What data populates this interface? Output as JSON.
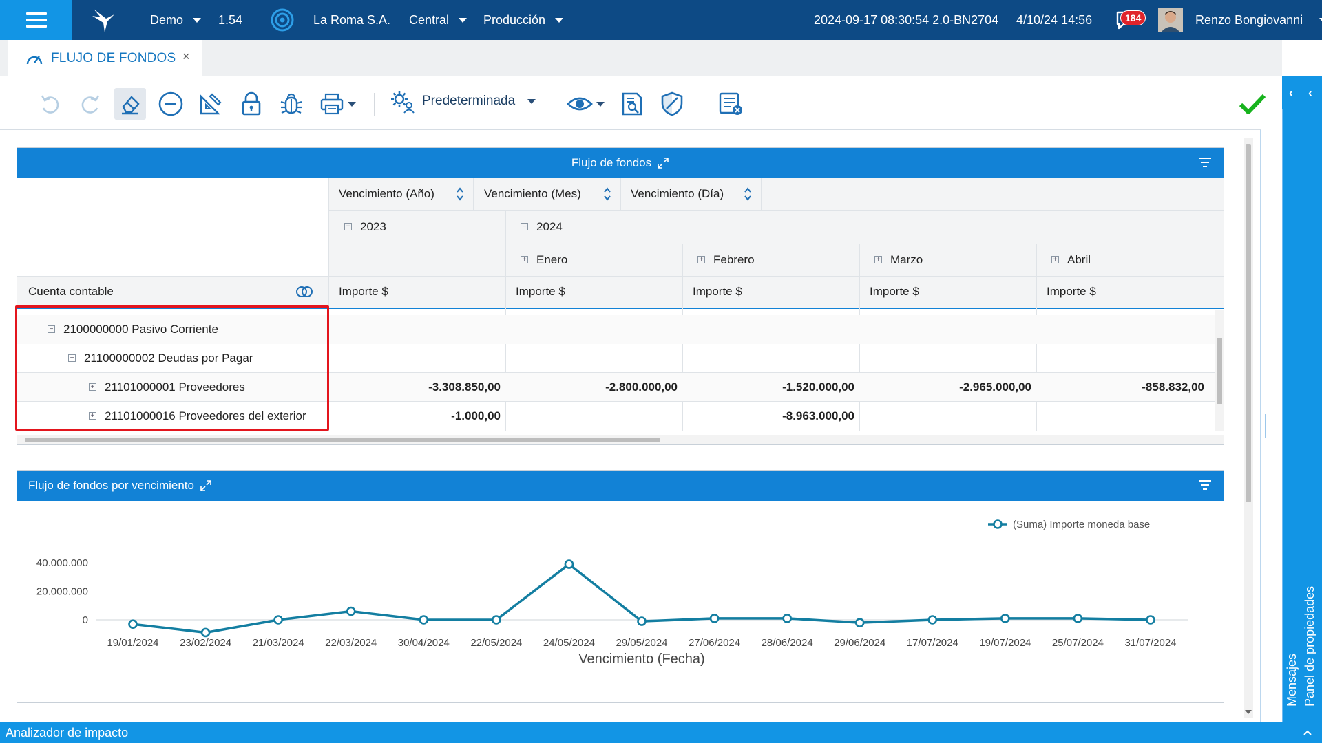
{
  "topbar": {
    "env": "Demo",
    "version": "1.54",
    "company": "La Roma S.A.",
    "branch": "Central",
    "mode": "Producción",
    "build": "2024-09-17 08:30:54 2.0-BN2704",
    "datetime": "4/10/24 14:56",
    "notifications": "184",
    "user": "Renzo Bongiovanni"
  },
  "tab": {
    "label": "FLUJO DE FONDOS",
    "close": "×"
  },
  "toolbar": {
    "preset_label": "Predeterminada"
  },
  "pivot": {
    "title": "Flujo de fondos",
    "field_headers": [
      "Vencimiento (Año)",
      "Vencimiento (Mes)",
      "Vencimiento (Día)"
    ],
    "row_field": "Cuenta contable",
    "years": [
      {
        "label": "2023",
        "expanded": false
      },
      {
        "label": "2024",
        "expanded": true
      }
    ],
    "months": [
      "Enero",
      "Febrero",
      "Marzo",
      "Abril"
    ],
    "measure": "Importe $",
    "rows": [
      {
        "label": "2100000000 Pasivo Corriente",
        "level": 0,
        "expanded": true,
        "values": [
          "",
          "",
          "",
          "",
          ""
        ]
      },
      {
        "label": "21100000002 Deudas por Pagar",
        "level": 1,
        "expanded": true,
        "values": [
          "",
          "",
          "",
          "",
          ""
        ]
      },
      {
        "label": "21101000001 Proveedores",
        "level": 2,
        "expanded": false,
        "values": [
          "-3.308.850,00",
          "-2.800.000,00",
          "-1.520.000,00",
          "-2.965.000,00",
          "-858.832,00"
        ]
      },
      {
        "label": "21101000016 Proveedores del exterior",
        "level": 2,
        "expanded": false,
        "values": [
          "-1.000,00",
          "",
          "-8.963.000,00",
          "",
          ""
        ]
      }
    ]
  },
  "chart_panel": {
    "title": "Flujo de fondos por vencimiento"
  },
  "chart_data": {
    "type": "line",
    "title": "",
    "xlabel": "Vencimiento (Fecha)",
    "ylabel": "",
    "ylim": [
      -4000000,
      40000000
    ],
    "yticks": [
      {
        "value": 40000000,
        "label": "40.000.000"
      },
      {
        "value": 20000000,
        "label": "20.000.000"
      },
      {
        "value": 0,
        "label": "0"
      }
    ],
    "categories": [
      "19/01/2024",
      "23/02/2024",
      "21/03/2024",
      "22/03/2024",
      "30/04/2024",
      "22/05/2024",
      "24/05/2024",
      "29/05/2024",
      "27/06/2024",
      "28/06/2024",
      "29/06/2024",
      "17/07/2024",
      "19/07/2024",
      "25/07/2024",
      "31/07/2024"
    ],
    "series": [
      {
        "name": "(Suma) Importe moneda base",
        "color": "#137ea1",
        "values": [
          -3000000,
          -8900000,
          0,
          6000000,
          0,
          0,
          39000000,
          -1000000,
          1000000,
          1000000,
          -2000000,
          0,
          1000000,
          1000000,
          0
        ]
      }
    ],
    "legend_position": "top-right",
    "grid": false
  },
  "bottombar": {
    "label": "Analizador de impacto"
  },
  "rightpanel": {
    "properties": "Panel de propiedades",
    "messages": "Mensajes"
  },
  "colors": {
    "topbar": "#0d4a85",
    "accent": "#1295e5",
    "panel_header": "#1282d6",
    "highlight": "#e3151d",
    "ok": "#17b31d"
  }
}
